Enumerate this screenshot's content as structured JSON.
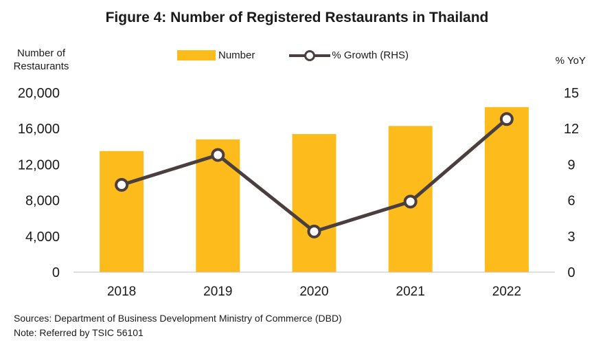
{
  "title": "Figure 4: Number of Registered Restaurants in Thailand",
  "ylabel_left": "Number of Restaurants",
  "ylabel_right": "% YoY",
  "legend": {
    "bar_label": "Number",
    "line_label": "% Growth (RHS)"
  },
  "colors": {
    "bar": "#FDBC1C",
    "line": "#4A3E3E",
    "axis": "#bfbfbf"
  },
  "source": "Sources: Department of Business Development Ministry of Commerce (DBD)",
  "note": "Note: Referred by TSIC 56101",
  "chart_data": {
    "type": "bar",
    "categories": [
      "2018",
      "2019",
      "2020",
      "2021",
      "2022"
    ],
    "series": [
      {
        "name": "Number",
        "type": "bar",
        "axis": "left",
        "values": [
          13500,
          14800,
          15400,
          16300,
          18400
        ]
      },
      {
        "name": "% Growth (RHS)",
        "type": "line",
        "axis": "right",
        "values": [
          7.3,
          9.8,
          3.4,
          5.9,
          12.8
        ]
      }
    ],
    "ylim_left": [
      0,
      20000
    ],
    "yticks_left": [
      "0",
      "4,000",
      "8,000",
      "12,000",
      "16,000",
      "20,000"
    ],
    "ylim_right": [
      0,
      15
    ],
    "yticks_right": [
      "0",
      "3",
      "6",
      "9",
      "12",
      "15"
    ],
    "grid": false,
    "legend_position": "top"
  }
}
